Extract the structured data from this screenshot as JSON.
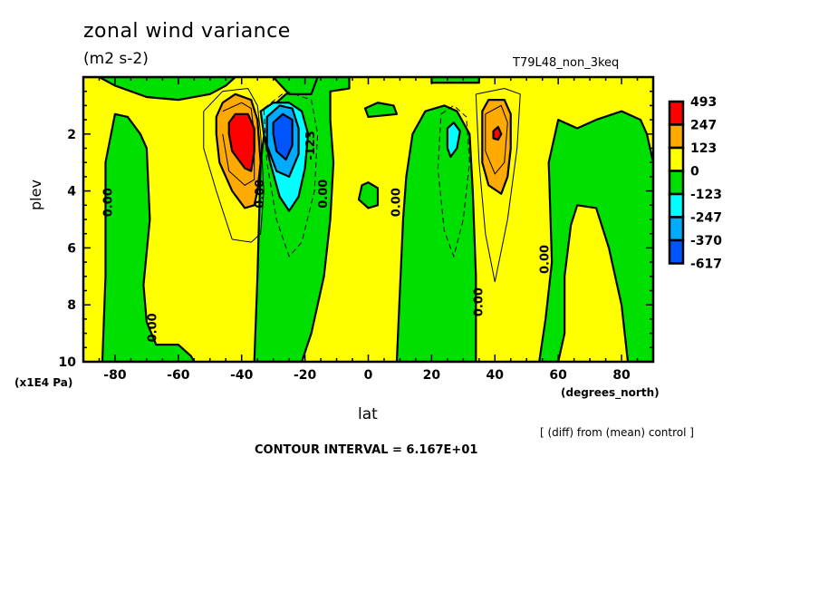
{
  "chart_data": {
    "type": "contour",
    "title": "zonal wind variance",
    "units": "(m2 s-2)",
    "run_label": "T79L48_non_3keq",
    "xlabel": "lat",
    "xlabel_units": "(degrees_north)",
    "ylabel": "plev",
    "ylabel_units": "(x1E4 Pa)",
    "xlim": [
      -90,
      90
    ],
    "ylim": [
      10,
      0
    ],
    "xticks": [
      -80,
      -60,
      -40,
      -20,
      0,
      20,
      40,
      60,
      80
    ],
    "xtick_labels": [
      "-80",
      "-60",
      "-40",
      "-20",
      "0",
      "20",
      "40",
      "60",
      "80"
    ],
    "yticks": [
      2,
      4,
      6,
      8,
      10
    ],
    "ytick_labels": [
      "2",
      "4",
      "6",
      "8",
      "10"
    ],
    "footnote": "[ (diff) from (mean) control ]",
    "contour_interval_text": "CONTOUR INTERVAL = 6.167E+01",
    "contour_labels": [
      {
        "text": "0.00",
        "lat": -81,
        "plev": 4.4
      },
      {
        "text": "0.00",
        "lat": -67,
        "plev": 8.8
      },
      {
        "text": "0.00",
        "lat": -33,
        "plev": 4.1
      },
      {
        "text": "-123",
        "lat": -17,
        "plev": 2.4
      },
      {
        "text": "0.00",
        "lat": -13,
        "plev": 4.1
      },
      {
        "text": "0.00",
        "lat": 10,
        "plev": 4.4
      },
      {
        "text": "0.00",
        "lat": 36,
        "plev": 7.9
      },
      {
        "text": "0.00",
        "lat": 57,
        "plev": 6.4
      }
    ],
    "colorbar": {
      "levels": [
        "493",
        "247",
        "123",
        "0",
        "-123",
        "-247",
        "-370",
        "-617"
      ],
      "colors": [
        "#ff0000",
        "#ffaa00",
        "#ffff00",
        "#00e000",
        "#00ffff",
        "#00aaff",
        "#0055ff"
      ]
    },
    "background_color": "#ffff00",
    "regions": [
      {
        "level": "0 to -123",
        "color": "#00e000",
        "points": [
          [
            -90,
            0
          ],
          [
            -85,
            0
          ],
          [
            -80,
            0.3
          ],
          [
            -70,
            0.7
          ],
          [
            -60,
            0.8
          ],
          [
            -50,
            0.6
          ],
          [
            -45,
            0.3
          ],
          [
            -42,
            0
          ],
          [
            -90,
            0
          ]
        ]
      },
      {
        "level": "0 to -123",
        "color": "#00e000",
        "points": [
          [
            -84,
            10
          ],
          [
            -83,
            7
          ],
          [
            -83,
            3
          ],
          [
            -80,
            1.3
          ],
          [
            -76,
            1.4
          ],
          [
            -72,
            2
          ],
          [
            -70,
            2.5
          ],
          [
            -69,
            5
          ],
          [
            -71,
            7.3
          ],
          [
            -70,
            8.6
          ],
          [
            -67,
            9.4
          ],
          [
            -60,
            9.4
          ],
          [
            -56,
            9.8
          ],
          [
            -55,
            10
          ]
        ]
      },
      {
        "level": "0 to -123",
        "color": "#00e000",
        "points": [
          [
            -36,
            10
          ],
          [
            -35,
            7
          ],
          [
            -34,
            3
          ],
          [
            -32,
            1.2
          ],
          [
            -26,
            0.6
          ],
          [
            -20,
            0.4
          ],
          [
            -18,
            0
          ],
          [
            -6,
            0
          ],
          [
            -6,
            0.4
          ],
          [
            -12,
            0.5
          ],
          [
            -12,
            1.5
          ],
          [
            -11,
            3
          ],
          [
            -12,
            5
          ],
          [
            -14,
            7
          ],
          [
            -18,
            9
          ],
          [
            -21,
            10
          ]
        ]
      },
      {
        "level": "0 to -123",
        "color": "#00e000",
        "points": [
          [
            -30,
            0
          ],
          [
            -25,
            0.6
          ],
          [
            -18,
            0.6
          ],
          [
            -16,
            0
          ],
          [
            -30,
            0
          ]
        ]
      },
      {
        "level": "0 to -123",
        "color": "#00e000",
        "points": [
          [
            -2,
            3.8
          ],
          [
            0,
            3.7
          ],
          [
            3,
            3.9
          ],
          [
            3,
            4.5
          ],
          [
            0,
            4.6
          ],
          [
            -3,
            4.3
          ],
          [
            -2,
            3.8
          ]
        ]
      },
      {
        "level": "0 to -123",
        "color": "#00e000",
        "points": [
          [
            -1,
            1.1
          ],
          [
            3,
            0.9
          ],
          [
            8,
            1.0
          ],
          [
            9,
            1.3
          ],
          [
            0,
            1.4
          ],
          [
            -1,
            1.1
          ]
        ]
      },
      {
        "level": "0 to -123",
        "color": "#00e000",
        "points": [
          [
            9,
            10
          ],
          [
            11,
            5
          ],
          [
            12,
            3.5
          ],
          [
            14,
            2
          ],
          [
            18,
            1.2
          ],
          [
            24,
            1
          ],
          [
            28,
            1.2
          ],
          [
            32,
            2
          ],
          [
            33,
            4
          ],
          [
            34,
            7
          ],
          [
            34,
            10
          ]
        ]
      },
      {
        "level": "0 to -123",
        "color": "#00e000",
        "points": [
          [
            54,
            10
          ],
          [
            56,
            8.5
          ],
          [
            58,
            6.5
          ],
          [
            57,
            3
          ],
          [
            60,
            1.5
          ],
          [
            66,
            1.8
          ],
          [
            72,
            1.5
          ],
          [
            80,
            1.2
          ],
          [
            86,
            1.5
          ],
          [
            88,
            2
          ],
          [
            90,
            3
          ],
          [
            90,
            10
          ],
          [
            82,
            10
          ],
          [
            80,
            8
          ],
          [
            76,
            6
          ],
          [
            72,
            4.6
          ],
          [
            66,
            4.5
          ],
          [
            64,
            5.2
          ],
          [
            62,
            7
          ],
          [
            62,
            9
          ],
          [
            60,
            10
          ]
        ]
      },
      {
        "level": "0 to -123",
        "color": "#00e000",
        "points": [
          [
            20,
            0
          ],
          [
            35,
            0
          ],
          [
            35,
            0.2
          ],
          [
            20,
            0.2
          ]
        ]
      },
      {
        "level": "123 to 247",
        "color": "#ffaa00",
        "points": [
          [
            -48,
            1.4
          ],
          [
            -46,
            0.9
          ],
          [
            -42,
            0.6
          ],
          [
            -37,
            0.8
          ],
          [
            -35,
            1.5
          ],
          [
            -34,
            3
          ],
          [
            -35,
            4
          ],
          [
            -36,
            4.5
          ],
          [
            -39,
            4.6
          ],
          [
            -43,
            4
          ],
          [
            -47,
            3
          ],
          [
            -48,
            2
          ]
        ]
      },
      {
        "level": "247 to 493",
        "color": "#ff0000",
        "points": [
          [
            -44,
            1.6
          ],
          [
            -42,
            1.3
          ],
          [
            -38,
            1.3
          ],
          [
            -36,
            1.8
          ],
          [
            -36,
            2.6
          ],
          [
            -37,
            3.3
          ],
          [
            -39,
            3.2
          ],
          [
            -43,
            2.6
          ],
          [
            -44,
            2
          ]
        ]
      },
      {
        "level": "-123 to -247",
        "color": "#00ffff",
        "points": [
          [
            -34,
            1.2
          ],
          [
            -30,
            0.9
          ],
          [
            -25,
            0.9
          ],
          [
            -21,
            1.2
          ],
          [
            -19,
            2
          ],
          [
            -20,
            3.2
          ],
          [
            -22,
            4.2
          ],
          [
            -25,
            4.7
          ],
          [
            -28,
            4.2
          ],
          [
            -31,
            3
          ],
          [
            -33,
            2
          ]
        ]
      },
      {
        "level": "-247 to -370",
        "color": "#00aaff",
        "points": [
          [
            -32,
            1.4
          ],
          [
            -28,
            1.0
          ],
          [
            -24,
            1.1
          ],
          [
            -22,
            1.8
          ],
          [
            -22,
            2.7
          ],
          [
            -25,
            3.5
          ],
          [
            -29,
            3.3
          ],
          [
            -32,
            2.4
          ]
        ]
      },
      {
        "level": "-370 to -617",
        "color": "#0055ff",
        "points": [
          [
            -30,
            1.6
          ],
          [
            -27,
            1.3
          ],
          [
            -24,
            1.5
          ],
          [
            -24,
            2.4
          ],
          [
            -26,
            2.9
          ],
          [
            -29,
            2.6
          ],
          [
            -30,
            2.0
          ]
        ]
      },
      {
        "level": "-123 to -247",
        "color": "#00ffff",
        "points": [
          [
            25,
            1.8
          ],
          [
            27,
            1.6
          ],
          [
            29,
            1.9
          ],
          [
            28,
            2.5
          ],
          [
            26,
            2.8
          ],
          [
            25,
            2.5
          ]
        ]
      },
      {
        "level": "123 to 247",
        "color": "#ffaa00",
        "points": [
          [
            36,
            1.2
          ],
          [
            38,
            0.8
          ],
          [
            43,
            0.8
          ],
          [
            45,
            1.3
          ],
          [
            45,
            2.5
          ],
          [
            44,
            3.5
          ],
          [
            42,
            4.1
          ],
          [
            38,
            3.8
          ],
          [
            36,
            3
          ]
        ]
      },
      {
        "level": "247 to 493",
        "color": "#ff0000",
        "points": [
          [
            39.5,
            1.9
          ],
          [
            41,
            1.75
          ],
          [
            42,
            2.0
          ],
          [
            41,
            2.2
          ],
          [
            39.5,
            2.15
          ]
        ]
      }
    ],
    "thin_contours": [
      {
        "style": "solid",
        "points": [
          [
            -52,
            1.2
          ],
          [
            -46,
            0.5
          ],
          [
            -38,
            0.4
          ],
          [
            -35,
            1
          ],
          [
            -34,
            2
          ],
          [
            -33,
            4
          ],
          [
            -34,
            5.5
          ],
          [
            -37,
            5.8
          ],
          [
            -43,
            5.7
          ],
          [
            -48,
            4
          ],
          [
            -52,
            2.5
          ],
          [
            -52,
            1.2
          ]
        ]
      },
      {
        "style": "solid",
        "points": [
          [
            -46,
            1.2
          ],
          [
            -40,
            0.9
          ],
          [
            -37,
            1.1
          ],
          [
            -36,
            2
          ],
          [
            -36,
            3.6
          ],
          [
            -39,
            3.8
          ],
          [
            -44,
            3.3
          ],
          [
            -46,
            2
          ]
        ]
      },
      {
        "style": "dashed",
        "points": [
          [
            -33,
            1.1
          ],
          [
            -26,
            0.5
          ],
          [
            -18,
            0.8
          ],
          [
            -16,
            2
          ],
          [
            -17,
            4
          ],
          [
            -21,
            5.8
          ],
          [
            -25,
            6.3
          ],
          [
            -29,
            5
          ],
          [
            -32,
            3
          ],
          [
            -33,
            1.1
          ]
        ]
      },
      {
        "style": "dashed",
        "points": [
          [
            23,
            1.3
          ],
          [
            27,
            1.0
          ],
          [
            31,
            1.4
          ],
          [
            32,
            3
          ],
          [
            30,
            5
          ],
          [
            27,
            6.3
          ],
          [
            24,
            5.4
          ],
          [
            22,
            3.2
          ],
          [
            23,
            1.3
          ]
        ]
      },
      {
        "style": "solid",
        "points": [
          [
            34,
            0.6
          ],
          [
            43,
            0.4
          ],
          [
            48,
            0.6
          ],
          [
            47,
            2.5
          ],
          [
            44,
            5
          ],
          [
            40,
            7.2
          ],
          [
            37,
            5.5
          ],
          [
            35,
            3
          ],
          [
            34,
            0.6
          ]
        ]
      },
      {
        "style": "solid",
        "points": [
          [
            37,
            1.3
          ],
          [
            42,
            1.0
          ],
          [
            44,
            1.6
          ],
          [
            43,
            3
          ],
          [
            40,
            3.4
          ],
          [
            37,
            2.6
          ],
          [
            37,
            1.3
          ]
        ]
      }
    ]
  }
}
